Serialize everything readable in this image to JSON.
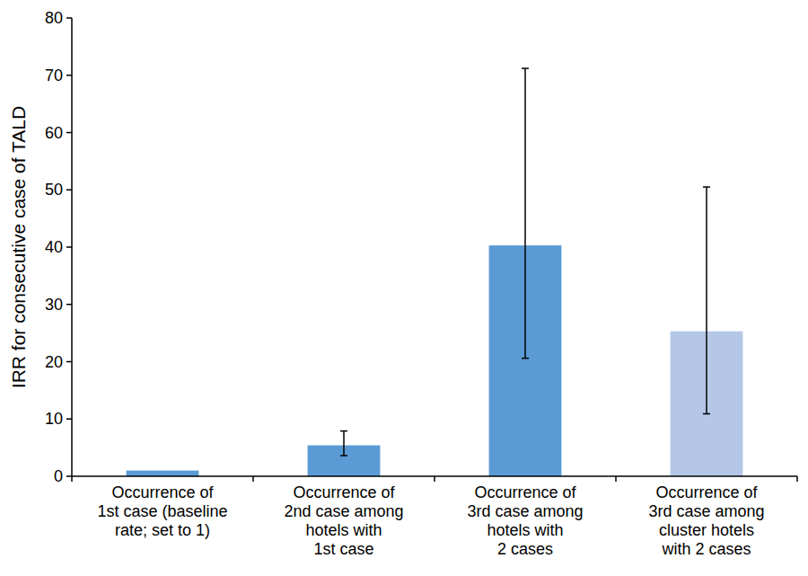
{
  "chart_data": {
    "type": "bar",
    "y_label": "IRR for consecutive case of TALD",
    "categories": [
      "Occurrence of\n1st case (baseline\nrate; set to 1)",
      "Occurrence of\n2nd case among\nhotels with\n1st case",
      "Occurrence of\n3rd case among\nhotels with\n2 cases",
      "Occurrence of\n3rd case among\ncluster hotels\nwith 2 cases"
    ],
    "values": [
      1,
      5.4,
      40.3,
      25.3
    ],
    "ci_lower": [
      null,
      3.6,
      20.6,
      10.9
    ],
    "ci_upper": [
      null,
      7.9,
      71.2,
      50.5
    ],
    "colors": [
      "#5b9bd5",
      "#5b9bd5",
      "#5b9bd5",
      "#b4c7e7"
    ],
    "ylim": [
      0,
      80
    ],
    "yticks": [
      0,
      10,
      20,
      30,
      40,
      50,
      60,
      70,
      80
    ],
    "grid": false
  }
}
